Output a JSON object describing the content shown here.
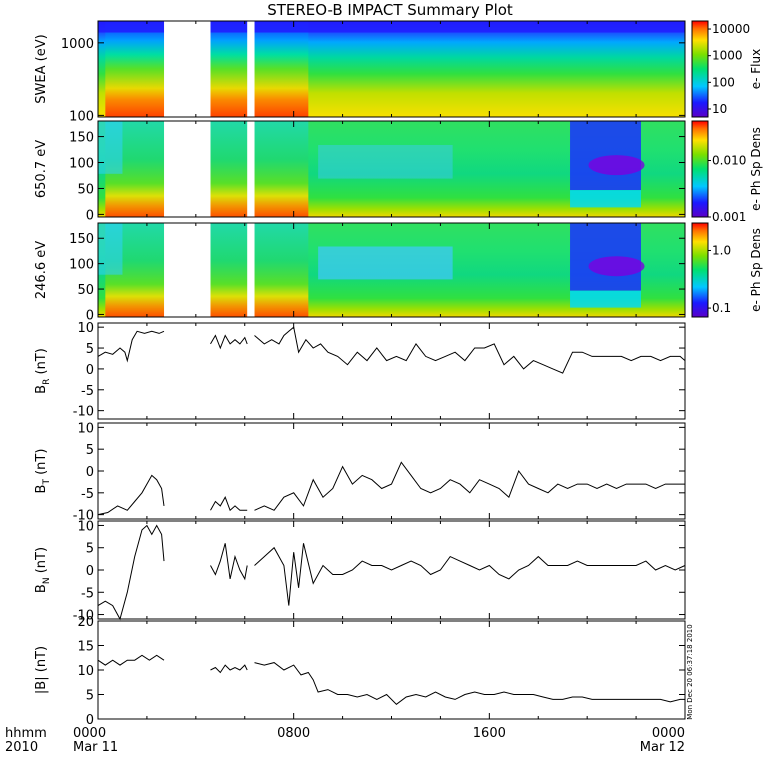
{
  "title": "STEREO-B IMPACT Summary Plot",
  "time_axis": {
    "row_label_1": "hhmm",
    "row_label_2": "2010",
    "ticks": [
      {
        "hhmm": "0000",
        "date": "Mar 11",
        "hour": 0
      },
      {
        "hhmm": "0800",
        "date": "",
        "hour": 8
      },
      {
        "hhmm": "1600",
        "date": "",
        "hour": 16
      },
      {
        "hhmm": "0000",
        "date": "Mar 12",
        "hour": 24
      }
    ]
  },
  "timestamp": "Mon Dec 20 06:37:18 2010",
  "colors": {
    "frame": "#000000",
    "line": "#000000",
    "gap": "#ffffff"
  },
  "chart_data": [
    {
      "type": "heatmap",
      "id": "swea",
      "ylabel": "SWEA (eV)",
      "yscale": "log",
      "ylim": [
        95,
        2000
      ],
      "yticks": [
        100,
        1000
      ],
      "ytick_labels": [
        "100",
        "1000"
      ],
      "colorbar": {
        "label": "e- Flux",
        "scale": "log",
        "range": [
          5,
          20000
        ],
        "ticks": [
          10,
          100,
          1000,
          10000
        ],
        "tick_labels": [
          "10",
          "100",
          "1000",
          "10000"
        ]
      },
      "data_gaps_hours": [
        [
          2.7,
          4.6
        ],
        [
          6.1,
          6.4
        ]
      ]
    },
    {
      "type": "heatmap",
      "id": "ph650",
      "ylabel": "650.7 eV",
      "yscale": "linear",
      "ylim": [
        -5,
        180
      ],
      "yticks": [
        0,
        50,
        100,
        150
      ],
      "ytick_labels": [
        "0",
        "50",
        "100",
        "150"
      ],
      "colorbar": {
        "label": "e- Ph Sp Dens",
        "scale": "log",
        "range": [
          0.001,
          0.05
        ],
        "ticks": [
          0.001,
          0.01
        ],
        "tick_labels": [
          "0.001",
          "0.010"
        ]
      },
      "data_gaps_hours": [
        [
          2.7,
          4.6
        ],
        [
          6.1,
          6.4
        ]
      ]
    },
    {
      "type": "heatmap",
      "id": "ph246",
      "ylabel": "246.6 eV",
      "yscale": "linear",
      "ylim": [
        -5,
        180
      ],
      "yticks": [
        0,
        50,
        100,
        150
      ],
      "ytick_labels": [
        "0",
        "50",
        "100",
        "150"
      ],
      "colorbar": {
        "label": "e- Ph Sp Dens",
        "scale": "log",
        "range": [
          0.07,
          3
        ],
        "ticks": [
          0.1,
          1
        ],
        "tick_labels": [
          "0.1",
          "1.0"
        ]
      },
      "data_gaps_hours": [
        [
          2.7,
          4.6
        ],
        [
          6.1,
          6.4
        ]
      ]
    },
    {
      "type": "line",
      "id": "br",
      "ylabel": "B_R (nT)",
      "ylabel_main": "B",
      "ylabel_sub": "R",
      "ylabel_unit": "(nT)",
      "ylim": [
        -12,
        11
      ],
      "yticks": [
        -10,
        -5,
        0,
        5,
        10
      ],
      "ytick_labels": [
        "-10",
        "-5",
        "0",
        "5",
        "10"
      ],
      "segments": [
        {
          "x": [
            0,
            0.3,
            0.6,
            0.9,
            1.1,
            1.2,
            1.4,
            1.6,
            1.9,
            2.2,
            2.5,
            2.7
          ],
          "y": [
            3,
            4,
            3.5,
            5,
            4,
            2,
            7,
            9,
            8.5,
            9,
            8.5,
            9
          ]
        },
        {
          "x": [
            4.6,
            4.8,
            5.0,
            5.2,
            5.4,
            5.6,
            5.8,
            6.0,
            6.1
          ],
          "y": [
            6,
            8,
            5,
            8,
            6,
            7,
            6,
            7.5,
            6
          ]
        },
        {
          "x": [
            6.4,
            6.8,
            7.1,
            7.4,
            7.6,
            7.8,
            8.0,
            8.2,
            8.5,
            8.8,
            9.1,
            9.4,
            9.8,
            10.2,
            10.6,
            11.0,
            11.4,
            11.8,
            12.2,
            12.6,
            13.0,
            13.4,
            13.8,
            14.2,
            14.6,
            15.0,
            15.4,
            15.8,
            16.2,
            16.6,
            17.0,
            17.4,
            17.8,
            18.2,
            18.6,
            19.0,
            19.4,
            19.8,
            20.2,
            20.6,
            21.0,
            21.4,
            21.8,
            22.2,
            22.6,
            23.0,
            23.4,
            23.8,
            24.0
          ],
          "y": [
            8,
            6,
            7,
            6,
            8,
            9,
            10,
            4,
            7,
            5,
            6,
            4,
            3,
            1,
            4,
            2,
            5,
            2,
            3,
            2,
            6,
            3,
            2,
            3,
            4,
            2,
            5,
            5,
            6,
            1,
            3,
            0,
            2,
            1,
            0,
            -1,
            4,
            4,
            3,
            3,
            3,
            3,
            2,
            3,
            3,
            2,
            3,
            3,
            2
          ]
        }
      ]
    },
    {
      "type": "line",
      "id": "bt",
      "ylabel": "B_T (nT)",
      "ylabel_main": "B",
      "ylabel_sub": "T",
      "ylabel_unit": "(nT)",
      "ylim": [
        -11,
        11
      ],
      "yticks": [
        -10,
        -5,
        0,
        5,
        10
      ],
      "ytick_labels": [
        "-10",
        "-5",
        "0",
        "5",
        "10"
      ],
      "segments": [
        {
          "x": [
            0,
            0.4,
            0.8,
            1.2,
            1.5,
            1.8,
            2.0,
            2.2,
            2.4,
            2.6,
            2.7
          ],
          "y": [
            -10,
            -9.5,
            -8,
            -9,
            -7,
            -5,
            -3,
            -1,
            -2,
            -4,
            -8
          ]
        },
        {
          "x": [
            4.6,
            4.8,
            5.0,
            5.2,
            5.4,
            5.6,
            5.8,
            6.0,
            6.1
          ],
          "y": [
            -9,
            -7,
            -8,
            -6,
            -9,
            -8,
            -9,
            -9,
            -9
          ]
        },
        {
          "x": [
            6.4,
            6.8,
            7.2,
            7.6,
            8.0,
            8.4,
            8.8,
            9.2,
            9.6,
            10.0,
            10.4,
            10.8,
            11.2,
            11.6,
            12.0,
            12.4,
            12.8,
            13.2,
            13.6,
            14.0,
            14.4,
            14.8,
            15.2,
            15.6,
            16.0,
            16.4,
            16.8,
            17.2,
            17.6,
            18.0,
            18.4,
            18.8,
            19.2,
            19.6,
            20.0,
            20.4,
            20.8,
            21.2,
            21.6,
            22.0,
            22.4,
            22.8,
            23.2,
            23.6,
            24.0
          ],
          "y": [
            -9,
            -8,
            -9,
            -6,
            -5,
            -8,
            -2,
            -6,
            -4,
            1,
            -3,
            -1,
            -2,
            -4,
            -3,
            2,
            -1,
            -4,
            -5,
            -4,
            -2,
            -3,
            -5,
            -2,
            -3,
            -4,
            -6,
            0,
            -3,
            -4,
            -5,
            -3,
            -4,
            -3,
            -3,
            -4,
            -3,
            -4,
            -3,
            -3,
            -3,
            -4,
            -3,
            -3,
            -3
          ]
        }
      ]
    },
    {
      "type": "line",
      "id": "bn",
      "ylabel": "B_N (nT)",
      "ylabel_main": "B",
      "ylabel_sub": "N",
      "ylabel_unit": "(nT)",
      "ylim": [
        -11,
        11
      ],
      "yticks": [
        -10,
        -5,
        0,
        5,
        10
      ],
      "ytick_labels": [
        "-10",
        "-5",
        "0",
        "5",
        "10"
      ],
      "segments": [
        {
          "x": [
            0,
            0.3,
            0.6,
            0.9,
            1.2,
            1.5,
            1.8,
            2.0,
            2.2,
            2.4,
            2.6,
            2.7
          ],
          "y": [
            -8,
            -7,
            -8,
            -11,
            -5,
            3,
            9,
            10,
            8,
            10,
            8,
            2
          ]
        },
        {
          "x": [
            4.6,
            4.8,
            5.0,
            5.2,
            5.4,
            5.6,
            5.8,
            6.0,
            6.1
          ],
          "y": [
            1,
            -1,
            2,
            6,
            -2,
            3,
            0,
            -2,
            1
          ]
        },
        {
          "x": [
            6.4,
            6.8,
            7.2,
            7.6,
            7.8,
            8.0,
            8.2,
            8.4,
            8.8,
            9.2,
            9.6,
            10.0,
            10.4,
            10.8,
            11.2,
            11.6,
            12.0,
            12.4,
            12.8,
            13.2,
            13.6,
            14.0,
            14.4,
            14.8,
            15.2,
            15.6,
            16.0,
            16.4,
            16.8,
            17.2,
            17.6,
            18.0,
            18.4,
            18.8,
            19.2,
            19.6,
            20.0,
            20.4,
            20.8,
            21.2,
            21.6,
            22.0,
            22.4,
            22.8,
            23.2,
            23.6,
            24.0
          ],
          "y": [
            1,
            3,
            5,
            1,
            -8,
            4,
            -4,
            6,
            -3,
            1,
            -1,
            -1,
            0,
            2,
            1,
            1,
            0,
            1,
            2,
            1,
            -1,
            0,
            3,
            2,
            1,
            0,
            1,
            -1,
            -2,
            0,
            1,
            3,
            1,
            1,
            1,
            2,
            1,
            1,
            1,
            1,
            1,
            1,
            2,
            0,
            1,
            0,
            1
          ]
        }
      ]
    },
    {
      "type": "line",
      "id": "btot",
      "ylabel": "|B| (nT)",
      "ylabel_main": "|B|",
      "ylabel_sub": "",
      "ylabel_unit": "(nT)",
      "ylim": [
        0,
        20
      ],
      "yticks": [
        0,
        5,
        10,
        15,
        20
      ],
      "ytick_labels": [
        "0",
        "5",
        "10",
        "15",
        "20"
      ],
      "segments": [
        {
          "x": [
            0,
            0.3,
            0.6,
            0.9,
            1.2,
            1.5,
            1.8,
            2.1,
            2.4,
            2.7
          ],
          "y": [
            12,
            11,
            12,
            11,
            12,
            12,
            13,
            12,
            13,
            12
          ]
        },
        {
          "x": [
            4.6,
            4.8,
            5.0,
            5.2,
            5.4,
            5.6,
            5.8,
            6.0,
            6.1
          ],
          "y": [
            10,
            10.5,
            9.5,
            11,
            10,
            10.5,
            10,
            11,
            10
          ]
        },
        {
          "x": [
            6.4,
            6.8,
            7.2,
            7.6,
            8.0,
            8.3,
            8.6,
            8.8,
            9.0,
            9.4,
            9.8,
            10.2,
            10.6,
            11.0,
            11.4,
            11.8,
            12.2,
            12.6,
            13.0,
            13.4,
            13.8,
            14.2,
            14.6,
            15.0,
            15.4,
            15.8,
            16.2,
            16.6,
            17.0,
            17.4,
            17.8,
            18.2,
            18.6,
            19.0,
            19.4,
            19.8,
            20.2,
            20.6,
            21.0,
            21.4,
            21.8,
            22.2,
            22.6,
            23.0,
            23.4,
            23.8,
            24.0
          ],
          "y": [
            11.5,
            11,
            11.5,
            10,
            11,
            9,
            9.5,
            8,
            5.5,
            6,
            5,
            5,
            4.5,
            5,
            4,
            5,
            3,
            4.5,
            5,
            4.5,
            5.5,
            4.5,
            4,
            5,
            5.5,
            5,
            5,
            5.5,
            5,
            5,
            5,
            4.5,
            4,
            4,
            4.5,
            4.5,
            4,
            4,
            4,
            4,
            4,
            4,
            4,
            4,
            3.5,
            4,
            4
          ]
        }
      ]
    }
  ]
}
